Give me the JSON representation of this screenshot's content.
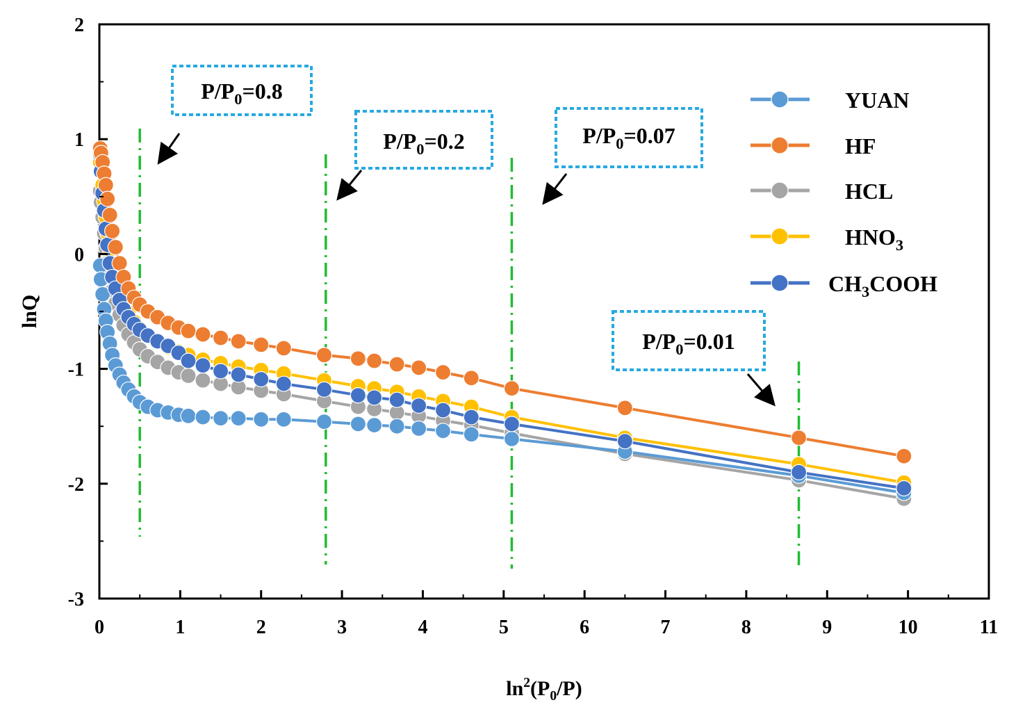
{
  "chart_data": {
    "type": "line",
    "title": "",
    "xlabel": "ln²(P₀/P)",
    "ylabel": "lnQ",
    "xlim": [
      0,
      11
    ],
    "ylim": [
      -3,
      2
    ],
    "xticks": [
      "0",
      "1",
      "2",
      "3",
      "4",
      "5",
      "6",
      "7",
      "8",
      "9",
      "10",
      "11"
    ],
    "yticks": [
      "2",
      "1",
      "0",
      "-1",
      "-2",
      "-3"
    ],
    "grid": false,
    "legend_position": "top-right",
    "x": [
      0.01,
      0.02,
      0.04,
      0.06,
      0.08,
      0.1,
      0.13,
      0.16,
      0.2,
      0.25,
      0.3,
      0.36,
      0.43,
      0.5,
      0.6,
      0.72,
      0.85,
      0.98,
      1.1,
      1.28,
      1.5,
      1.72,
      2.0,
      2.28,
      2.78,
      3.2,
      3.4,
      3.68,
      3.95,
      4.25,
      4.6,
      5.1,
      6.5,
      8.65,
      9.95
    ],
    "series": [
      {
        "name": "YUAN",
        "color": "#5b9bd5",
        "values": [
          -0.1,
          -0.22,
          -0.35,
          -0.48,
          -0.58,
          -0.68,
          -0.78,
          -0.88,
          -0.97,
          -1.05,
          -1.12,
          -1.18,
          -1.24,
          -1.29,
          -1.33,
          -1.36,
          -1.38,
          -1.4,
          -1.41,
          -1.42,
          -1.43,
          -1.43,
          -1.44,
          -1.44,
          -1.46,
          -1.48,
          -1.49,
          -1.5,
          -1.52,
          -1.54,
          -1.57,
          -1.61,
          -1.72,
          -1.93,
          -2.08
        ]
      },
      {
        "name": "HF",
        "color": "#ed7d31",
        "values": [
          0.92,
          0.88,
          0.8,
          0.7,
          0.6,
          0.48,
          0.34,
          0.2,
          0.06,
          -0.08,
          -0.2,
          -0.3,
          -0.38,
          -0.44,
          -0.5,
          -0.55,
          -0.6,
          -0.64,
          -0.67,
          -0.7,
          -0.73,
          -0.76,
          -0.79,
          -0.82,
          -0.88,
          -0.91,
          -0.93,
          -0.96,
          -0.99,
          -1.03,
          -1.08,
          -1.17,
          -1.34,
          -1.6,
          -1.76
        ]
      },
      {
        "name": "HCL",
        "color": "#a5a5a5",
        "values": [
          0.55,
          0.45,
          0.32,
          0.18,
          0.05,
          -0.08,
          -0.2,
          -0.32,
          -0.43,
          -0.53,
          -0.62,
          -0.7,
          -0.77,
          -0.83,
          -0.89,
          -0.94,
          -0.99,
          -1.03,
          -1.06,
          -1.1,
          -1.13,
          -1.16,
          -1.19,
          -1.22,
          -1.28,
          -1.33,
          -1.35,
          -1.38,
          -1.41,
          -1.45,
          -1.49,
          -1.56,
          -1.74,
          -1.97,
          -2.13
        ]
      },
      {
        "name": "HNO₃",
        "color": "#ffc000",
        "values": [
          0.8,
          0.72,
          0.6,
          0.46,
          0.32,
          0.18,
          0.04,
          -0.1,
          -0.22,
          -0.33,
          -0.43,
          -0.51,
          -0.59,
          -0.65,
          -0.71,
          -0.76,
          -0.81,
          -0.85,
          -0.88,
          -0.92,
          -0.95,
          -0.98,
          -1.01,
          -1.04,
          -1.1,
          -1.15,
          -1.17,
          -1.2,
          -1.24,
          -1.28,
          -1.33,
          -1.42,
          -1.6,
          -1.83,
          -1.99
        ]
      },
      {
        "name": "CH₃COOH",
        "color": "#4472c4",
        "values": [
          0.87,
          0.72,
          0.53,
          0.38,
          0.22,
          0.08,
          -0.08,
          -0.2,
          -0.3,
          -0.4,
          -0.48,
          -0.55,
          -0.61,
          -0.66,
          -0.71,
          -0.76,
          -0.8,
          -0.86,
          -0.93,
          -0.97,
          -1.02,
          -1.05,
          -1.09,
          -1.13,
          -1.18,
          -1.23,
          -1.25,
          -1.27,
          -1.32,
          -1.36,
          -1.42,
          -1.48,
          -1.63,
          -1.9,
          -2.04
        ]
      }
    ],
    "vlines_x": [
      0.5,
      2.8,
      5.1,
      8.65
    ],
    "annotations": [
      {
        "id": "p08",
        "pre": "P/P",
        "sub": "0",
        "post": "=0.8"
      },
      {
        "id": "p02",
        "pre": "P/P",
        "sub": "0",
        "post": "=0.2"
      },
      {
        "id": "p007",
        "pre": "P/P",
        "sub": "0",
        "post": "=0.07"
      },
      {
        "id": "p001",
        "pre": "P/P",
        "sub": "0",
        "post": "=0.01"
      }
    ],
    "legend": [
      {
        "pre": "YUAN",
        "sub": "",
        "post": ""
      },
      {
        "pre": "HF",
        "sub": "",
        "post": ""
      },
      {
        "pre": "HCL",
        "sub": "",
        "post": ""
      },
      {
        "pre": "HNO",
        "sub": "3",
        "post": ""
      },
      {
        "pre": "CH",
        "sub": "3",
        "post": "COOH"
      }
    ],
    "xlabel_parts": {
      "pre": "ln",
      "sup": "2",
      "post": "(P",
      "sub": "0",
      "end": "/P)"
    }
  }
}
